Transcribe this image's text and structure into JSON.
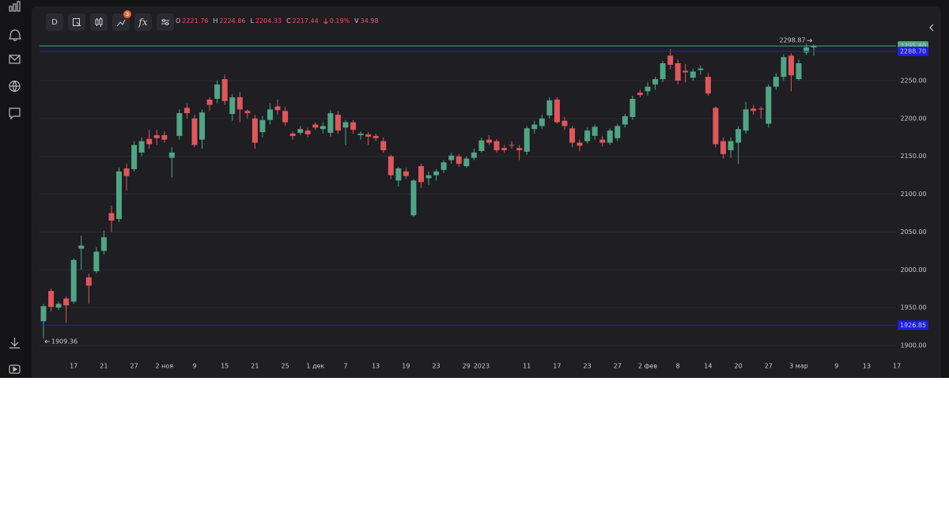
{
  "toolbar": {
    "interval": "D",
    "badge": "3",
    "formula": "fx",
    "ohlc": [
      {
        "label": "O",
        "value": "2221.76"
      },
      {
        "label": "H",
        "value": "2224.86"
      },
      {
        "label": "L",
        "value": "2204.33"
      },
      {
        "label": "C",
        "value": "2217.44"
      }
    ],
    "change": "0.19%",
    "volume_label": "V",
    "volume": "34.98"
  },
  "chart_data": {
    "type": "candlestick",
    "categories": [
      null,
      null,
      null,
      null,
      "17",
      null,
      null,
      null,
      "21",
      null,
      null,
      null,
      "27",
      null,
      null,
      null,
      "2 ноя",
      null,
      null,
      null,
      "9",
      null,
      null,
      null,
      "15",
      null,
      null,
      null,
      "21",
      null,
      null,
      null,
      "25",
      null,
      null,
      null,
      "1 дек",
      null,
      null,
      null,
      "7",
      null,
      null,
      null,
      "13",
      null,
      null,
      null,
      "19",
      null,
      null,
      null,
      "23",
      null,
      null,
      null,
      "29",
      null,
      "2023",
      null,
      null,
      null,
      null,
      null,
      "11",
      null,
      null,
      null,
      "17",
      null,
      null,
      null,
      "23",
      null,
      null,
      null,
      "27",
      null,
      null,
      null,
      "2 фев",
      null,
      null,
      null,
      "8",
      null,
      null,
      null,
      "14",
      null,
      null,
      null,
      "20",
      null,
      null,
      null,
      "27",
      null,
      null,
      null,
      "3 мар",
      null,
      null,
      null,
      null,
      "9",
      null,
      null,
      null,
      "13",
      null,
      null,
      null,
      "17"
    ],
    "open": [
      1932,
      1972,
      1950,
      1962,
      1958,
      2028,
      1990,
      1998,
      2025,
      2075,
      2067,
      2134,
      2133,
      2155,
      2173,
      2178,
      2178,
      2148,
      2177,
      2214,
      2200,
      2172,
      2225,
      2226,
      2252,
      2206,
      2228,
      2210,
      2200,
      2182,
      2198,
      2216,
      2210,
      2180,
      2181,
      2184,
      2192,
      2186,
      2181,
      2205,
      2188,
      2195,
      2178,
      2179,
      2177,
      2170,
      2150,
      2118,
      2130,
      2072,
      2137,
      2121,
      2125,
      2132,
      2145,
      2150,
      2137,
      2148,
      2157,
      2172,
      2170,
      2161,
      2165,
      2161,
      2156,
      2186,
      2190,
      2204,
      2225,
      2197,
      2187,
      2168,
      2170,
      2177,
      2172,
      2168,
      2174,
      2192,
      2202,
      2234,
      2236,
      2245,
      2252,
      2283,
      2273,
      2263,
      2254,
      2264,
      2255,
      2214,
      2170,
      2158,
      2168,
      2184,
      2213,
      2213,
      2193,
      2242,
      2255,
      2283,
      2252,
      2287,
      2294,
      null,
      null,
      null,
      null,
      null,
      null,
      null,
      null,
      null,
      null,
      null
    ],
    "high": [
      1955,
      1975,
      1958,
      1965,
      2015,
      2045,
      1995,
      2030,
      2052,
      2085,
      2135,
      2140,
      2170,
      2175,
      2185,
      2185,
      2183,
      2162,
      2212,
      2220,
      2205,
      2212,
      2228,
      2250,
      2258,
      2232,
      2235,
      2212,
      2205,
      2203,
      2220,
      2225,
      2215,
      2183,
      2190,
      2188,
      2195,
      2195,
      2211,
      2210,
      2198,
      2198,
      2183,
      2182,
      2180,
      2175,
      2152,
      2136,
      2135,
      2120,
      2140,
      2130,
      2133,
      2145,
      2155,
      2153,
      2150,
      2160,
      2175,
      2178,
      2173,
      2165,
      2170,
      2165,
      2190,
      2197,
      2205,
      2228,
      2228,
      2202,
      2190,
      2172,
      2188,
      2192,
      2177,
      2187,
      2193,
      2206,
      2230,
      2238,
      2248,
      2255,
      2276,
      2292,
      2278,
      2272,
      2266,
      2270,
      2260,
      2216,
      2175,
      2175,
      2190,
      2222,
      2218,
      2216,
      2245,
      2260,
      2285,
      2286,
      2278,
      2298.87,
      2298,
      null,
      null,
      null,
      null,
      null,
      null,
      null,
      null,
      null,
      null,
      null
    ],
    "low": [
      1909.36,
      1945,
      1947,
      1930,
      1955,
      2000,
      1955,
      1995,
      2020,
      2050,
      2063,
      2105,
      2130,
      2150,
      2160,
      2165,
      2168,
      2122,
      2172,
      2200,
      2162,
      2160,
      2210,
      2220,
      2218,
      2197,
      2195,
      2200,
      2160,
      2175,
      2192,
      2205,
      2190,
      2172,
      2178,
      2175,
      2185,
      2180,
      2176,
      2180,
      2165,
      2180,
      2172,
      2165,
      2170,
      2155,
      2120,
      2110,
      2120,
      2070,
      2108,
      2112,
      2118,
      2128,
      2140,
      2136,
      2135,
      2145,
      2155,
      2165,
      2155,
      2155,
      2160,
      2145,
      2152,
      2180,
      2186,
      2200,
      2193,
      2185,
      2162,
      2157,
      2167,
      2172,
      2163,
      2165,
      2170,
      2188,
      2198,
      2228,
      2230,
      2238,
      2248,
      2265,
      2245,
      2248,
      2250,
      2258,
      2230,
      2162,
      2147,
      2148,
      2140,
      2180,
      2205,
      2200,
      2188,
      2238,
      2250,
      2236,
      2250,
      2284,
      2283,
      null,
      null,
      null,
      null,
      null,
      null,
      null,
      null,
      null,
      null,
      null
    ],
    "close": [
      1952,
      1951,
      1955,
      1953,
      2013,
      2032,
      1979,
      2024,
      2043,
      2065,
      2130,
      2124,
      2165,
      2170,
      2166,
      2174,
      2172,
      2155,
      2207,
      2207,
      2165,
      2208,
      2218,
      2245,
      2223,
      2228,
      2212,
      2207,
      2168,
      2198,
      2212,
      2211,
      2195,
      2177,
      2186,
      2179,
      2188,
      2190,
      2207,
      2184,
      2195,
      2185,
      2180,
      2176,
      2174,
      2158,
      2125,
      2134,
      2124,
      2118,
      2116,
      2125,
      2130,
      2142,
      2151,
      2140,
      2147,
      2155,
      2171,
      2168,
      2158,
      2158,
      2164,
      2158,
      2187,
      2192,
      2200,
      2224,
      2195,
      2190,
      2168,
      2164,
      2184,
      2189,
      2168,
      2184,
      2190,
      2203,
      2226,
      2231,
      2242,
      2252,
      2273,
      2271,
      2250,
      2261,
      2262,
      2266,
      2233,
      2166,
      2153,
      2170,
      2186,
      2212,
      2210,
      2212,
      2242,
      2255,
      2281,
      2257,
      2273,
      2294,
      2295.8,
      null,
      null,
      null,
      null,
      null,
      null,
      null,
      null,
      null,
      null,
      null
    ],
    "up_color": "#4fa685",
    "down_color": "#e0575b",
    "ylim": [
      1884.3,
      2340.9
    ],
    "yticks": [
      {
        "value": 1900,
        "label": "1900.00"
      },
      {
        "value": 1950,
        "label": "1950.00"
      },
      {
        "value": 2000,
        "label": "2000.00"
      },
      {
        "value": 2050,
        "label": "2050.00"
      },
      {
        "value": 2100,
        "label": "2100.00"
      },
      {
        "value": 2150,
        "label": "2150.00"
      },
      {
        "value": 2200,
        "label": "2200.00"
      },
      {
        "value": 2250,
        "label": "2250.00"
      }
    ],
    "grid": true,
    "price_lines": [
      {
        "value": 2295.8,
        "label": "2295.80",
        "color": "#4fa685"
      },
      {
        "value": 2288.7,
        "label": "2288.70",
        "color": "#1e1ee8"
      },
      {
        "value": 1926.85,
        "label": "1926.85",
        "color": "#1e1ee8"
      }
    ],
    "high_marker": "2298.87",
    "low_marker": "1909.36"
  }
}
